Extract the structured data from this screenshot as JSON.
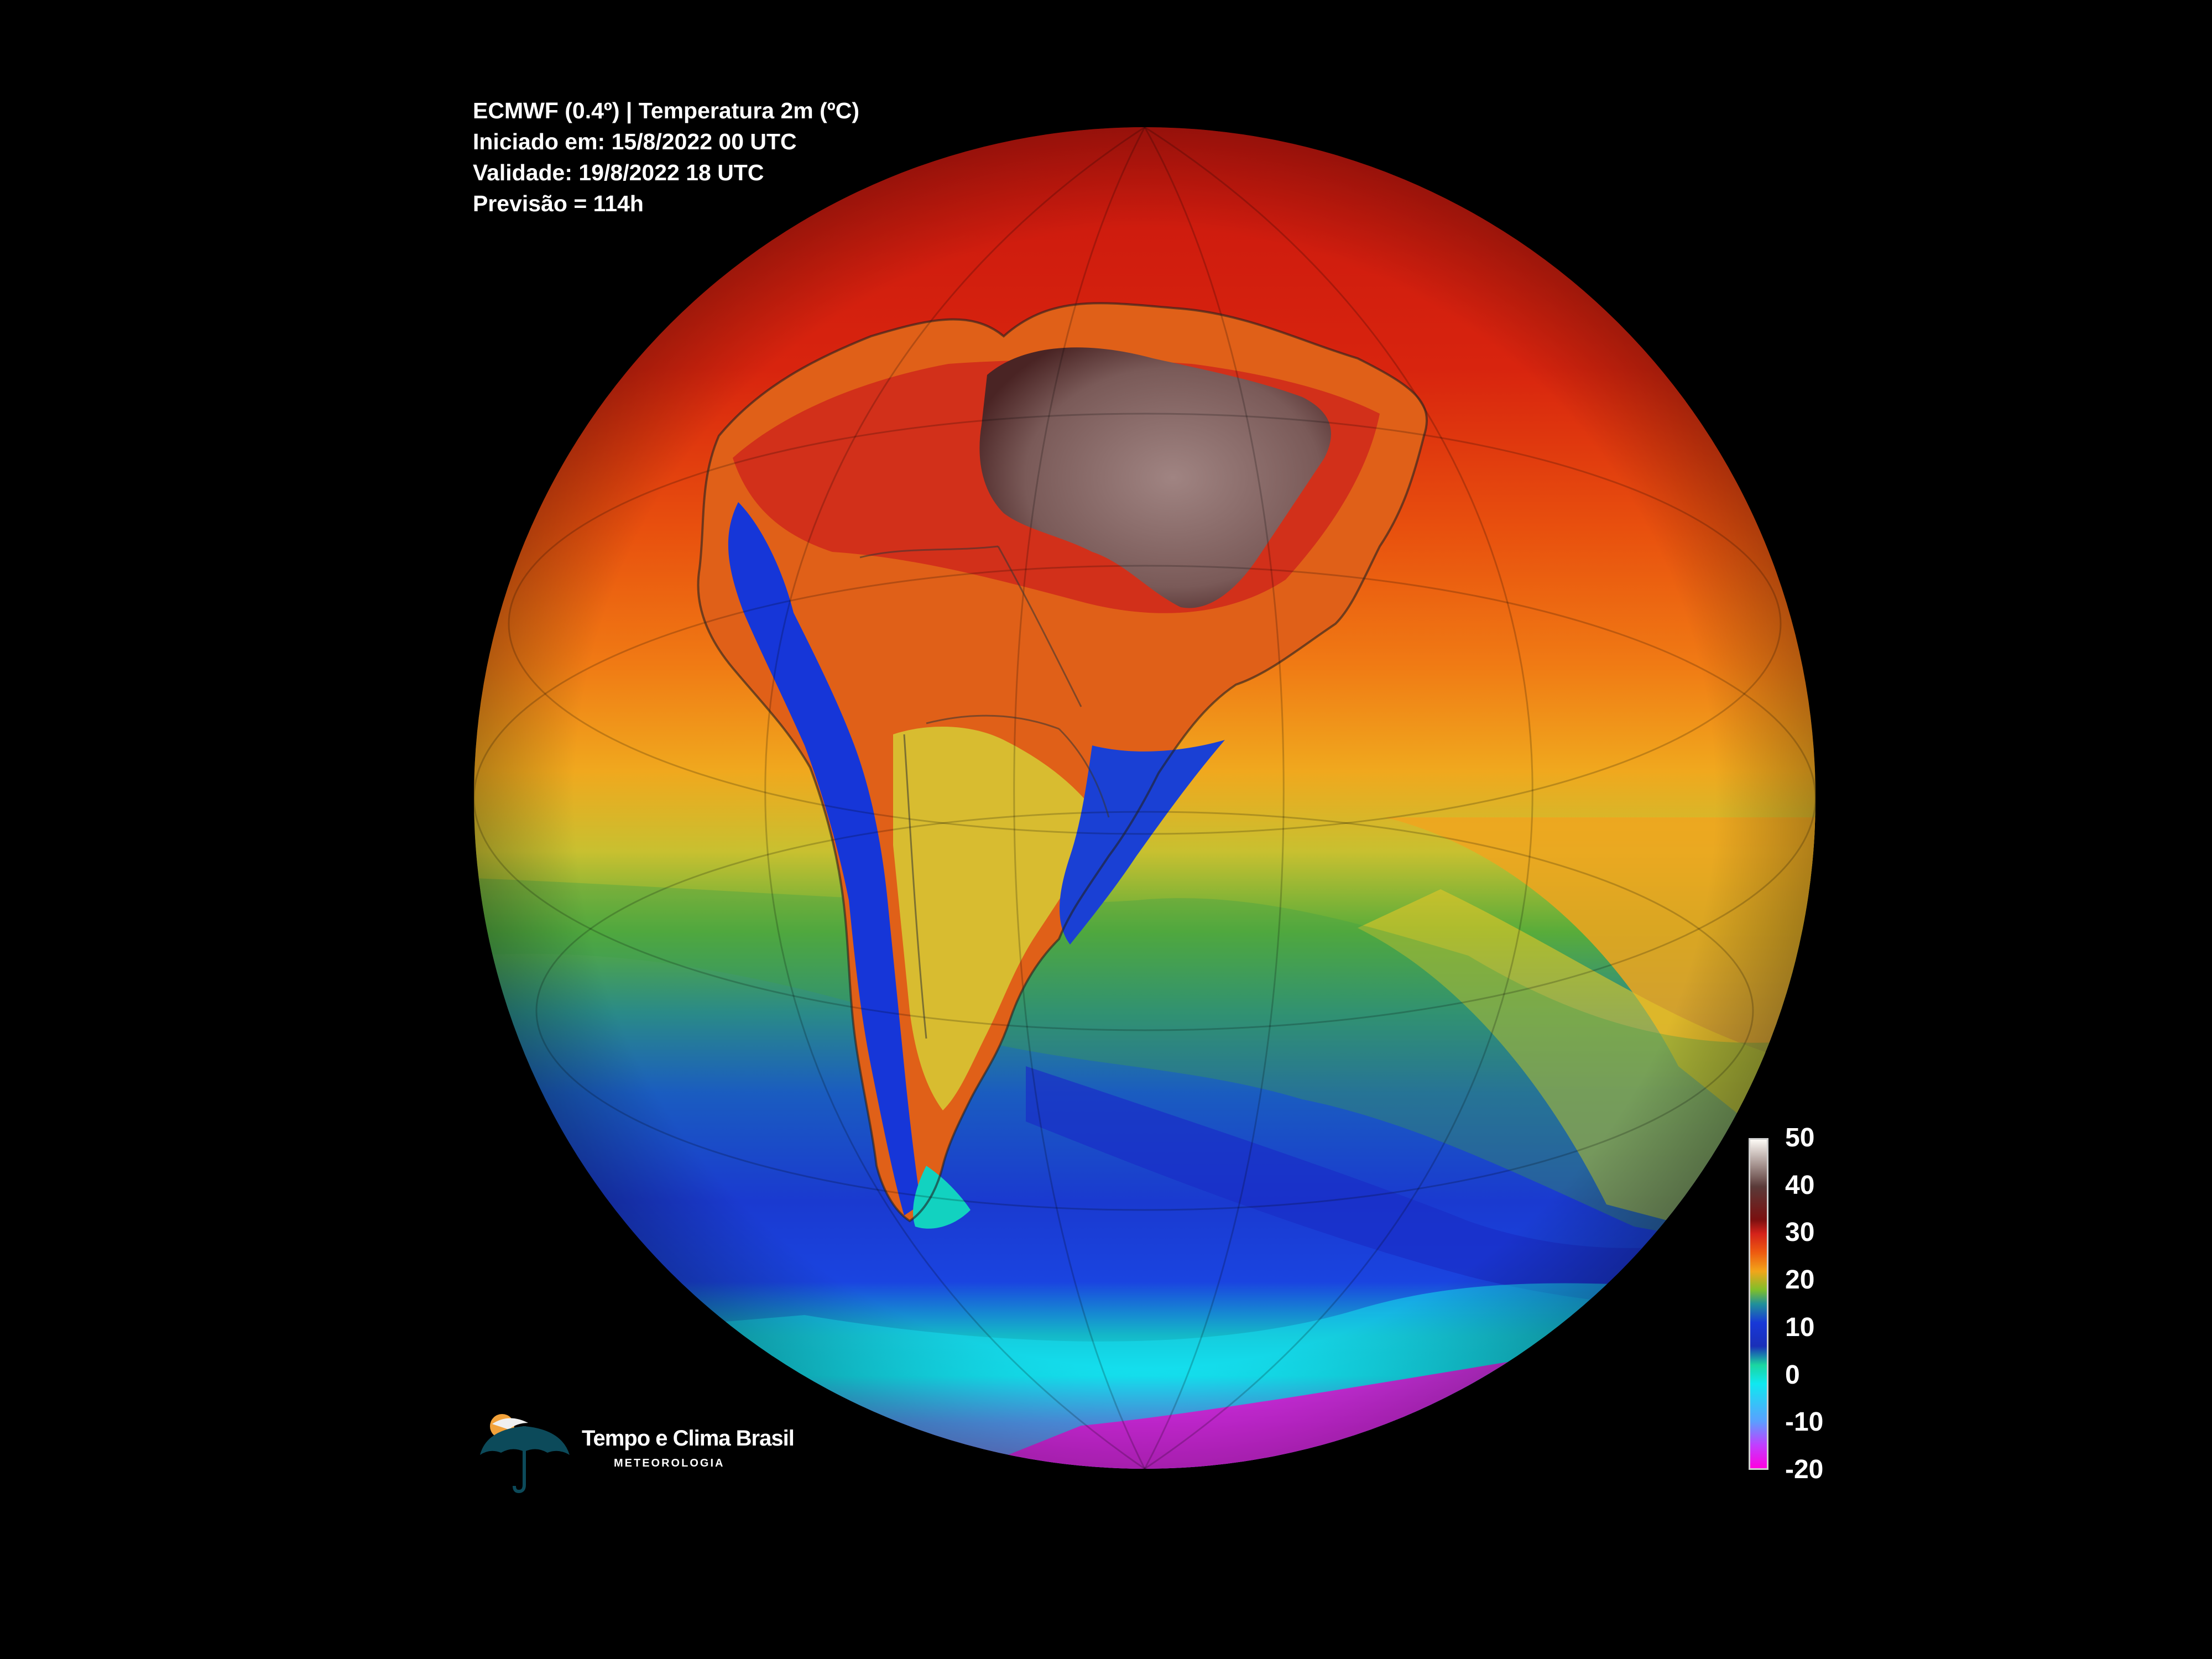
{
  "header": {
    "line1": "ECMWF (0.4º) | Temperatura 2m (ºC)",
    "line2": "Iniciado em: 15/8/2022 00 UTC",
    "line3": "Validade: 19/8/2022 18 UTC",
    "line4": "Previsão = 114h"
  },
  "colorbar": {
    "labels": [
      "50",
      "40",
      "30",
      "20",
      "10",
      "0",
      "-10",
      "-20"
    ],
    "range": [
      -20,
      50
    ],
    "stops": [
      {
        "value": 50,
        "color": "#fdfaf5"
      },
      {
        "value": 40,
        "color": "#5a3a38"
      },
      {
        "value": 33,
        "color": "#7a1010"
      },
      {
        "value": 30,
        "color": "#d4221a"
      },
      {
        "value": 26,
        "color": "#ee5a10"
      },
      {
        "value": 22,
        "color": "#f2a51a"
      },
      {
        "value": 18,
        "color": "#7fbf2a"
      },
      {
        "value": 15,
        "color": "#20909a"
      },
      {
        "value": 11,
        "color": "#1838d8"
      },
      {
        "value": 6,
        "color": "#1a2fb8"
      },
      {
        "value": 2,
        "color": "#1ad6a0"
      },
      {
        "value": -2,
        "color": "#10e8f0"
      },
      {
        "value": -10,
        "color": "#5aa0ff"
      },
      {
        "value": -15,
        "color": "#c040ff"
      },
      {
        "value": -20,
        "color": "#ff00e0"
      }
    ]
  },
  "map": {
    "projection": "orthographic globe centered on South America",
    "colors": {
      "hot_interior": "#8a6a68",
      "very_warm": "#c81e14",
      "warm": "#e64a12",
      "mild": "#f0a020",
      "cool": "#4aa838",
      "cold": "#1840d0",
      "freezing": "#10e0f0",
      "polar": "#ee22ee"
    }
  },
  "logo": {
    "title": "Tempo e Clima Brasil",
    "subtitle": "METEOROLOGIA"
  }
}
